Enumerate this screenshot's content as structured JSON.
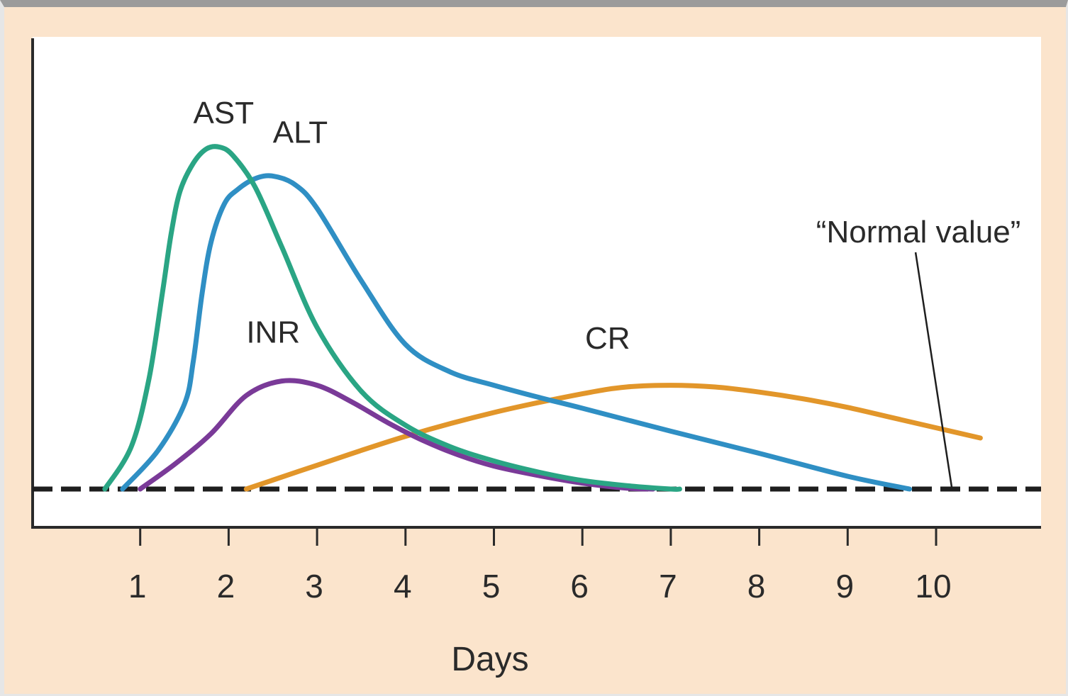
{
  "chart_data": {
    "type": "line",
    "title": "",
    "xlabel": "Days",
    "ylabel": "",
    "xlim": [
      0,
      11.2
    ],
    "ylim": [
      -0.45,
      5.0
    ],
    "x_ticks": [
      1,
      2,
      3,
      4,
      5,
      6,
      7,
      8,
      9,
      10
    ],
    "tick_labels": [
      "1",
      "2",
      "3",
      "4",
      "5",
      "6",
      "7",
      "8",
      "9",
      "10"
    ],
    "grid": false,
    "reference_line": {
      "label": "“Normal value”",
      "y": 0,
      "style": "dashed",
      "label_x": 9.8,
      "label_y": 2.9,
      "pointer_x": 10.18
    },
    "series": [
      {
        "name": "AST",
        "color": "#2aa584",
        "label_x": 1.6,
        "label_y": 4.3,
        "x": [
          0.6,
          0.9,
          1.1,
          1.25,
          1.35,
          1.45,
          1.6,
          1.75,
          1.9,
          2.05,
          2.3,
          2.6,
          3.0,
          3.5,
          4.0,
          4.5,
          5.0,
          5.5,
          6.0,
          6.5,
          7.0,
          7.1
        ],
        "y": [
          0.0,
          0.5,
          1.3,
          2.3,
          3.0,
          3.5,
          3.83,
          4.0,
          4.02,
          3.92,
          3.55,
          2.85,
          1.9,
          1.15,
          0.75,
          0.5,
          0.33,
          0.2,
          0.1,
          0.04,
          0.0,
          0.0
        ]
      },
      {
        "name": "ALT",
        "color": "#2f8fc4",
        "label_x": 2.5,
        "label_y": 4.07,
        "x": [
          0.8,
          1.2,
          1.5,
          1.6,
          1.7,
          1.8,
          1.95,
          2.1,
          2.3,
          2.5,
          2.75,
          3.0,
          3.5,
          4.0,
          4.5,
          5.0,
          5.5,
          6.0,
          7.0,
          8.0,
          9.0,
          9.7
        ],
        "y": [
          0.0,
          0.45,
          1.0,
          1.5,
          2.3,
          2.9,
          3.35,
          3.52,
          3.65,
          3.68,
          3.58,
          3.3,
          2.45,
          1.7,
          1.38,
          1.22,
          1.08,
          0.95,
          0.68,
          0.42,
          0.15,
          0.0
        ]
      },
      {
        "name": "INR",
        "color": "#7a3a98",
        "label_x": 2.2,
        "label_y": 1.72,
        "x": [
          1.0,
          1.4,
          1.8,
          2.2,
          2.6,
          3.0,
          3.4,
          3.8,
          4.2,
          4.6,
          5.0,
          5.5,
          6.0,
          6.5,
          6.8
        ],
        "y": [
          0.0,
          0.3,
          0.65,
          1.1,
          1.27,
          1.22,
          1.02,
          0.78,
          0.57,
          0.4,
          0.27,
          0.16,
          0.07,
          0.01,
          0.0
        ]
      },
      {
        "name": "CR",
        "color": "#e2962a",
        "label_x": 6.03,
        "label_y": 1.65,
        "x": [
          2.2,
          3.0,
          4.0,
          5.0,
          6.0,
          6.5,
          7.0,
          7.5,
          8.0,
          8.5,
          9.0,
          9.5,
          10.0,
          10.5
        ],
        "y": [
          0.0,
          0.28,
          0.62,
          0.9,
          1.12,
          1.2,
          1.22,
          1.2,
          1.14,
          1.06,
          0.96,
          0.84,
          0.72,
          0.6
        ]
      }
    ]
  }
}
